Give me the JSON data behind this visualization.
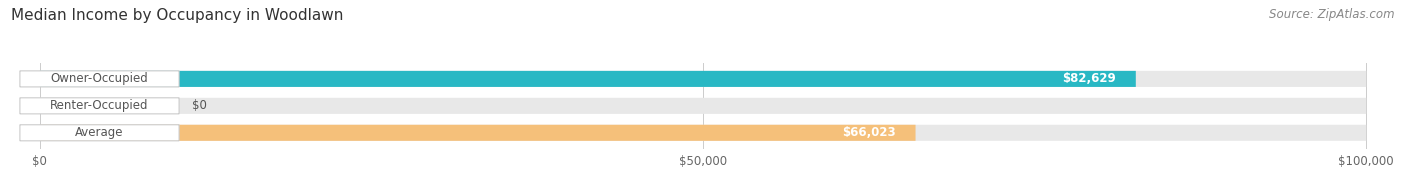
{
  "title": "Median Income by Occupancy in Woodlawn",
  "source": "Source: ZipAtlas.com",
  "categories": [
    "Owner-Occupied",
    "Renter-Occupied",
    "Average"
  ],
  "values": [
    82629,
    0,
    66023
  ],
  "labels": [
    "$82,629",
    "$0",
    "$66,023"
  ],
  "bar_colors": [
    "#29b8c4",
    "#c4a8d4",
    "#f5c07a"
  ],
  "bg_bar_color": "#e8e8e8",
  "xlim": [
    0,
    100000
  ],
  "xticks": [
    0,
    50000,
    100000
  ],
  "xtick_labels": [
    "$0",
    "$50,000",
    "$100,000"
  ],
  "title_fontsize": 11,
  "source_fontsize": 8.5,
  "label_fontsize": 8.5,
  "tick_fontsize": 8.5,
  "bar_height": 0.58,
  "background_color": "#ffffff"
}
